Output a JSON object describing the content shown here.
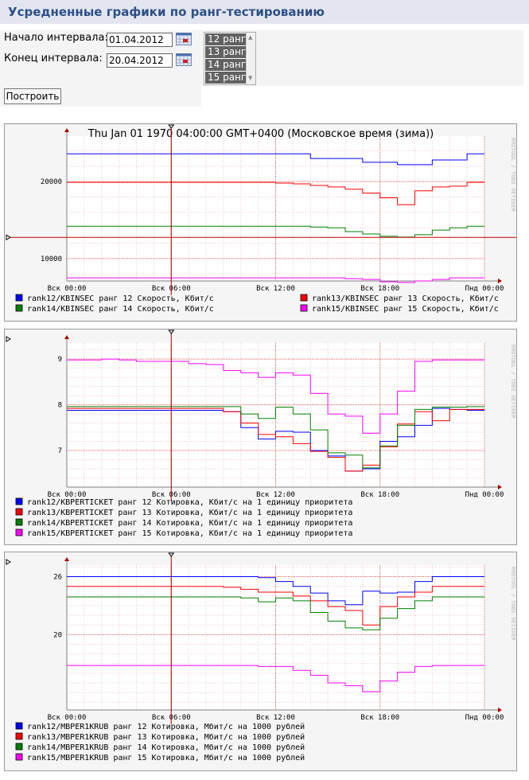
{
  "page": {
    "title": "Усредненные графики по ранг-тестированию"
  },
  "form": {
    "start_label": "Начало интервала:",
    "start_value": "01.04.2012",
    "end_label": "Конец интервала:",
    "end_value": "20.04.2012",
    "rank_options": [
      "12 ранг",
      "13 ранг",
      "14 ранг",
      "15 ранг"
    ],
    "build_button": "Построить"
  },
  "colors": {
    "rank12": "#0000ff",
    "rank13": "#ff0000",
    "rank14": "#008000",
    "rank15": "#ff00ff",
    "cursor": "#aa0000"
  },
  "chart_data": [
    {
      "type": "line",
      "title": "Thu Jan 01 1970 04:00:00 GMT+0400 (Московское время (зима))",
      "watermark": "RRDTOOL / TOBI OETIKER",
      "x_ticks": [
        "Вск 00:00",
        "Вск 06:00",
        "Вск 12:00",
        "Вск 18:00",
        "Пнд 00:00"
      ],
      "y_ticks": [
        10000,
        20000
      ],
      "y_tick_labels": [
        "10000",
        "20000"
      ],
      "ylim": [
        7100,
        25900
      ],
      "x": [
        0,
        1,
        2,
        3,
        4,
        5,
        6,
        7,
        8,
        9,
        10,
        11,
        12,
        13,
        14,
        15,
        16,
        17,
        18,
        19,
        20,
        21,
        22,
        23
      ],
      "marker_value": 12750,
      "cursor_x": 6.0,
      "series": [
        {
          "name": "rank12/KBINSEC ранг 12 Скорость, Кбит/с",
          "color": "#0000ff",
          "values": [
            23600,
            23600,
            23600,
            23600,
            23600,
            23600,
            23600,
            23600,
            23600,
            23600,
            23600,
            23600,
            23600,
            23600,
            23000,
            23000,
            23000,
            22500,
            22500,
            22200,
            22200,
            22800,
            22800,
            23600
          ]
        },
        {
          "name": "rank13/KBINSEC ранг 13 Скорость, Кбит/с",
          "color": "#ff0000",
          "values": [
            19900,
            19900,
            19900,
            19900,
            19900,
            19900,
            19900,
            19900,
            19900,
            19900,
            19900,
            19900,
            19800,
            19700,
            19500,
            19300,
            19000,
            18500,
            17900,
            17000,
            18800,
            19300,
            19400,
            19900
          ]
        },
        {
          "name": "rank14/KBINSEC ранг 14 Скорость, Кбит/с",
          "color": "#008000",
          "values": [
            14200,
            14200,
            14200,
            14200,
            14200,
            14200,
            14200,
            14200,
            14200,
            14200,
            14200,
            14200,
            14200,
            14200,
            14100,
            14000,
            13500,
            13200,
            12900,
            12800,
            13100,
            13700,
            14000,
            14200
          ]
        },
        {
          "name": "rank15/KBINSEC ранг 15 Скорость, Кбит/с",
          "color": "#ff00ff",
          "values": [
            7500,
            7500,
            7500,
            7500,
            7500,
            7500,
            7500,
            7500,
            7500,
            7500,
            7500,
            7500,
            7500,
            7500,
            7500,
            7500,
            7400,
            7300,
            7000,
            6900,
            7100,
            7300,
            7500,
            7500
          ]
        }
      ]
    },
    {
      "type": "line",
      "title": "",
      "watermark": "RRDTOOL / TOBI OETIKER",
      "x_ticks": [
        "Вск 00:00",
        "Вск 06:00",
        "Вск 12:00",
        "Вск 18:00",
        "Пнд 00:00"
      ],
      "y_ticks": [
        7,
        8,
        9
      ],
      "y_tick_labels": [
        "7",
        "8",
        "9"
      ],
      "ylim": [
        6.2,
        9.35
      ],
      "x": [
        0,
        1,
        2,
        3,
        4,
        5,
        6,
        7,
        8,
        9,
        10,
        11,
        12,
        13,
        14,
        15,
        16,
        17,
        18,
        19,
        20,
        21,
        22,
        23
      ],
      "cursor_x": 6.0,
      "series": [
        {
          "name": "rank12/KBPERTICKET ранг 12 Котировка, Кбит/с на 1 единицу приоритета",
          "color": "#0000ff",
          "values": [
            7.88,
            7.88,
            7.88,
            7.88,
            7.88,
            7.88,
            7.88,
            7.88,
            7.88,
            7.85,
            7.5,
            7.25,
            7.42,
            7.4,
            7.0,
            6.88,
            6.55,
            6.6,
            7.2,
            7.3,
            7.55,
            7.92,
            7.9,
            7.88
          ]
        },
        {
          "name": "rank13/KBPERTICKET ранг 13 Котировка, Кбит/с на 1 единицу приоритета",
          "color": "#ff0000",
          "values": [
            7.92,
            7.92,
            7.92,
            7.92,
            7.92,
            7.92,
            7.92,
            7.92,
            7.92,
            7.85,
            7.6,
            7.35,
            7.3,
            7.15,
            6.98,
            6.85,
            6.55,
            6.68,
            7.08,
            7.58,
            7.85,
            7.65,
            7.9,
            7.9
          ]
        },
        {
          "name": "rank14/KBPERTICKET ранг 14 Котировка, Кбит/с на 1 единицу приоритета",
          "color": "#008000",
          "values": [
            7.96,
            7.96,
            7.96,
            7.96,
            7.96,
            7.96,
            7.96,
            7.96,
            7.96,
            7.96,
            7.8,
            7.7,
            7.95,
            7.8,
            7.45,
            6.95,
            6.9,
            6.62,
            7.1,
            7.55,
            7.9,
            7.95,
            7.95,
            7.96
          ]
        },
        {
          "name": "rank15/KBPERTICKET ранг 15 Котировка, Кбит/с на 1 единицу приоритета",
          "color": "#ff00ff",
          "values": [
            8.98,
            8.98,
            9.0,
            8.98,
            8.95,
            8.95,
            8.95,
            8.9,
            8.88,
            8.75,
            8.7,
            8.6,
            8.7,
            8.65,
            8.25,
            7.8,
            7.75,
            7.38,
            7.8,
            8.3,
            8.95,
            8.98,
            8.98,
            8.98
          ]
        }
      ]
    },
    {
      "type": "line",
      "title": "",
      "watermark": "RRDTOOL / TOBI OETIKER",
      "x_ticks": [
        "Вск 00:00",
        "Вск 06:00",
        "Вск 12:00",
        "Вск 18:00",
        "Пнд 00:00"
      ],
      "y_ticks": [
        20,
        26
      ],
      "y_tick_labels": [
        "20",
        "26"
      ],
      "ylim": [
        12.2,
        27.2
      ],
      "x": [
        0,
        1,
        2,
        3,
        4,
        5,
        6,
        7,
        8,
        9,
        10,
        11,
        12,
        13,
        14,
        15,
        16,
        17,
        18,
        19,
        20,
        21,
        22,
        23
      ],
      "cursor_x": 6.0,
      "series": [
        {
          "name": "rank12/MBPER1KRUB ранг 12 Котировка, Мбит/с на 1000 рублей",
          "color": "#0000ff",
          "values": [
            26,
            26,
            26,
            26,
            26,
            26,
            26,
            26,
            26,
            26,
            26,
            25.9,
            25.5,
            25.0,
            24.3,
            23.5,
            23.1,
            24.5,
            24.3,
            24.4,
            25.5,
            26,
            26,
            26
          ]
        },
        {
          "name": "rank13/MBPER1KRUB ранг 13 Котировка, Мбит/с на 1000 рублей",
          "color": "#ff0000",
          "values": [
            25,
            25,
            25,
            25,
            25,
            25,
            25,
            25,
            25,
            24.9,
            24.7,
            24.4,
            24.4,
            24.0,
            23.5,
            22.9,
            22.5,
            21.0,
            22.9,
            23.9,
            24.4,
            25.0,
            25.0,
            25.0
          ]
        },
        {
          "name": "rank14/MBPER1KRUB ранг 14 Котировка, Мбит/с на 1000 рублей",
          "color": "#008000",
          "values": [
            23.9,
            23.9,
            23.9,
            23.9,
            23.9,
            23.9,
            23.9,
            23.9,
            23.9,
            23.9,
            23.8,
            23.4,
            23.8,
            23.5,
            22.3,
            21.4,
            20.7,
            20.5,
            21.7,
            22.7,
            23.5,
            23.9,
            23.9,
            23.9
          ]
        },
        {
          "name": "rank15/MBPER1KRUB ранг 15 Котировка, Мбит/с на 1000 рублей",
          "color": "#ff00ff",
          "values": [
            16.8,
            16.8,
            16.8,
            16.8,
            16.8,
            16.8,
            16.8,
            16.8,
            16.8,
            16.8,
            16.8,
            16.7,
            16.7,
            16.3,
            15.8,
            15.0,
            14.7,
            14.1,
            15.2,
            16.1,
            16.7,
            16.8,
            16.8,
            16.8
          ]
        }
      ]
    }
  ]
}
